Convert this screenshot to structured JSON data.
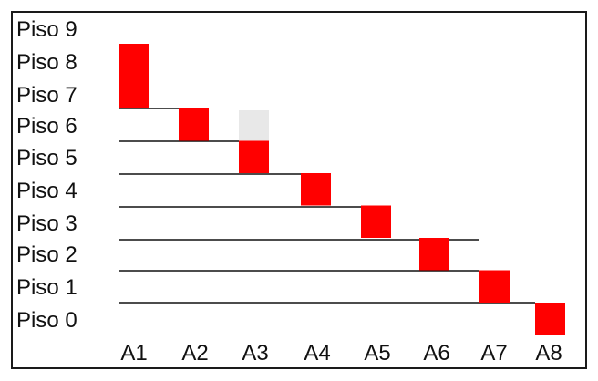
{
  "floors": [
    "Piso 9",
    "Piso 8",
    "Piso 7",
    "Piso 6",
    "Piso 5",
    "Piso 4",
    "Piso 3",
    "Piso 2",
    "Piso 1",
    "Piso 0"
  ],
  "columns": [
    "A1",
    "A2",
    "A3",
    "A4",
    "A5",
    "A6",
    "A7",
    "A8"
  ],
  "colors": {
    "active": "#ff0000",
    "inactive": "#e8e8e8",
    "line": "#111111"
  },
  "blocks": [
    {
      "column": "A1",
      "top_floor": "Piso 8",
      "bottom_floor": "Piso 7",
      "state": "active"
    },
    {
      "column": "A2",
      "top_floor": "Piso 6",
      "bottom_floor": "Piso 6",
      "state": "active"
    },
    {
      "column": "A3",
      "top_floor": "Piso 6",
      "bottom_floor": "Piso 6",
      "state": "inactive"
    },
    {
      "column": "A3",
      "top_floor": "Piso 5",
      "bottom_floor": "Piso 5",
      "state": "active"
    },
    {
      "column": "A4",
      "top_floor": "Piso 4",
      "bottom_floor": "Piso 4",
      "state": "active"
    },
    {
      "column": "A5",
      "top_floor": "Piso 3",
      "bottom_floor": "Piso 3",
      "state": "active"
    },
    {
      "column": "A6",
      "top_floor": "Piso 2",
      "bottom_floor": "Piso 2",
      "state": "active"
    },
    {
      "column": "A7",
      "top_floor": "Piso 1",
      "bottom_floor": "Piso 1",
      "state": "active"
    },
    {
      "column": "A8",
      "top_floor": "Piso 0",
      "bottom_floor": "Piso 0",
      "state": "active"
    }
  ]
}
